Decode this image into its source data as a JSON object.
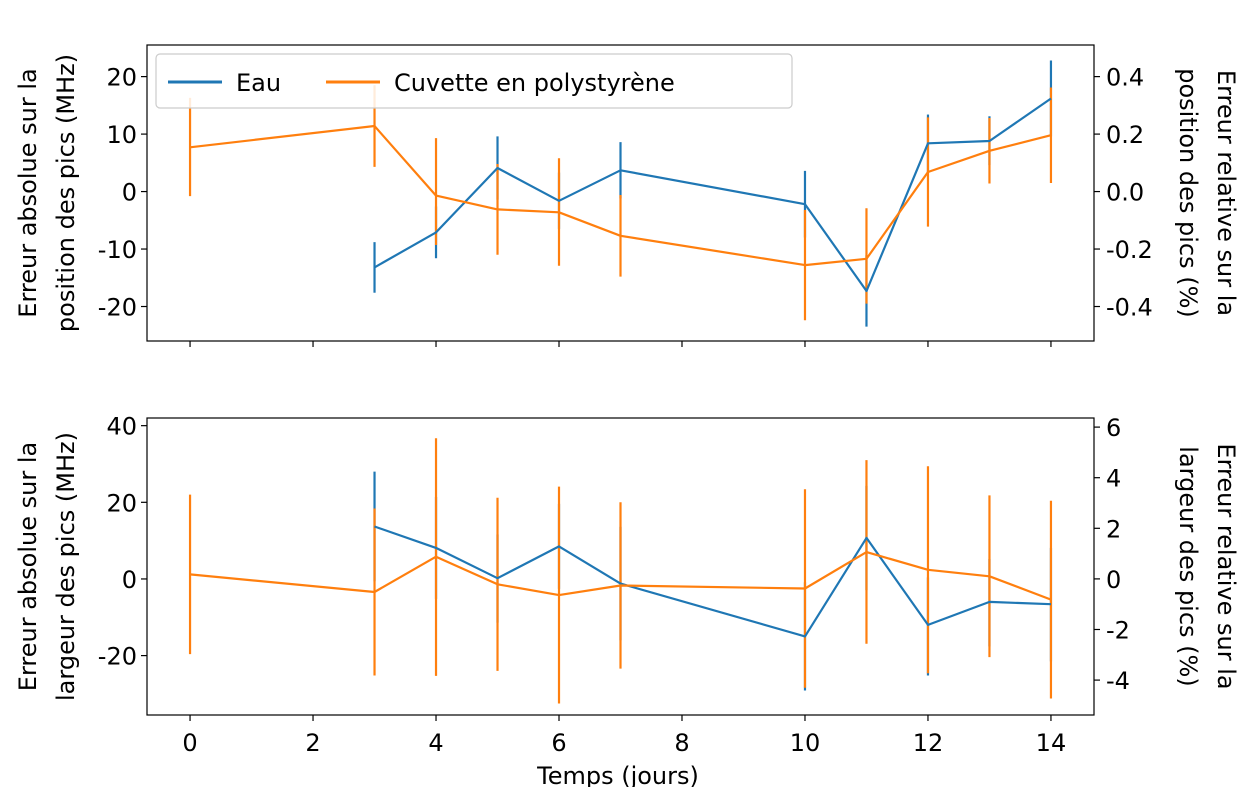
{
  "chart_data": [
    {
      "type": "line",
      "name": "top",
      "xlabel": "",
      "ylabel_left": [
        "Erreur absolue sur la",
        "position des pics (MHz)"
      ],
      "ylabel_right": [
        "Erreur relative sur la",
        "position des pics (%)"
      ],
      "xlim": [
        -0.7,
        14.7
      ],
      "ylim": [
        -26,
        25.5
      ],
      "ylim_right": [
        -0.52,
        0.51
      ],
      "xticks": [
        0,
        2,
        4,
        6,
        8,
        10,
        12,
        14
      ],
      "yticks": [
        20,
        10,
        0,
        -10,
        -20
      ],
      "ytick_labels": [
        "20",
        "10",
        "0",
        "-10",
        "-20"
      ],
      "yticks_right": [
        0.4,
        0.2,
        0.0,
        -0.2,
        -0.4
      ],
      "ytick_labels_right": [
        "0.4",
        "0.2",
        "0.0",
        "-0.2",
        "-0.4"
      ],
      "show_xtick_labels": false,
      "legend": {
        "placement": "top-left",
        "entries": [
          "Eau",
          "Cuvette en polystyrène"
        ]
      },
      "series": [
        {
          "name": "Eau",
          "color": "#1f77b4",
          "x": [
            3,
            4,
            5,
            6,
            7,
            10,
            11,
            12,
            13,
            14
          ],
          "y": [
            -13.2,
            -7.1,
            4.1,
            -1.6,
            3.7,
            -2.2,
            -17.3,
            8.4,
            8.8,
            16.2
          ],
          "yerr_low": [
            -17.6,
            -11.6,
            -1.4,
            -6.5,
            -1.2,
            -8.0,
            -23.5,
            3.2,
            4.6,
            9.6
          ],
          "yerr_high": [
            -8.8,
            -2.6,
            9.6,
            3.3,
            8.6,
            3.6,
            -11.1,
            13.4,
            13.1,
            22.8
          ]
        },
        {
          "name": "Cuvette en polystyrène",
          "color": "#ff7f0e",
          "x": [
            0,
            3,
            4,
            5,
            6,
            7,
            10,
            11,
            12,
            13,
            14
          ],
          "y": [
            7.7,
            11.4,
            -0.7,
            -3.1,
            -3.6,
            -7.7,
            -12.8,
            -11.7,
            3.4,
            7.1,
            9.8
          ],
          "yerr_low": [
            -0.8,
            4.3,
            -9.3,
            -11.0,
            -12.9,
            -14.8,
            -22.4,
            -19.5,
            -6.1,
            1.4,
            1.5
          ],
          "yerr_high": [
            16.3,
            18.5,
            9.3,
            4.8,
            5.8,
            -0.6,
            -3.2,
            -2.9,
            12.9,
            12.8,
            18.1
          ]
        }
      ]
    },
    {
      "type": "line",
      "name": "bottom",
      "xlabel": "Temps (jours)",
      "ylabel_left": [
        "Erreur absolue sur la",
        "largeur des pics (MHz)"
      ],
      "ylabel_right": [
        "Erreur relative sur la",
        "largeur des pics (%)"
      ],
      "xlim": [
        -0.7,
        14.7
      ],
      "ylim": [
        -35.5,
        42
      ],
      "ylim_right": [
        -5.38,
        6.36
      ],
      "xticks": [
        0,
        2,
        4,
        6,
        8,
        10,
        12,
        14
      ],
      "xtick_labels": [
        "0",
        "2",
        "4",
        "6",
        "8",
        "10",
        "12",
        "14"
      ],
      "yticks": [
        40,
        20,
        0,
        -20
      ],
      "ytick_labels": [
        "40",
        "20",
        "0",
        "-20"
      ],
      "yticks_right": [
        6,
        4,
        2,
        0,
        -2,
        -4
      ],
      "ytick_labels_right": [
        "6",
        "4",
        "2",
        "0",
        "-2",
        "-4"
      ],
      "show_xtick_labels": true,
      "series": [
        {
          "name": "Eau",
          "color": "#1f77b4",
          "x": [
            3,
            4,
            5,
            6,
            7,
            10,
            11,
            12,
            13,
            14
          ],
          "y": [
            13.7,
            8.1,
            0.2,
            8.5,
            -1.2,
            -15.0,
            10.7,
            -12.0,
            -6.0,
            -6.6
          ],
          "yerr_low": [
            -0.6,
            -5.2,
            -11.4,
            -2.6,
            -16.0,
            -29.1,
            -2.9,
            -25.2,
            -17.6,
            -21.5
          ],
          "yerr_high": [
            28.0,
            21.4,
            11.6,
            19.6,
            13.6,
            -0.9,
            24.3,
            0.4,
            5.2,
            8.1
          ]
        },
        {
          "name": "Cuvette en polystyrène",
          "color": "#ff7f0e",
          "x": [
            0,
            3,
            4,
            5,
            6,
            7,
            10,
            11,
            12,
            13,
            14
          ],
          "y": [
            1.2,
            -3.4,
            5.8,
            -1.4,
            -4.2,
            -1.7,
            -2.5,
            7.0,
            2.4,
            0.7,
            -5.4
          ],
          "yerr_low": [
            -19.6,
            -25.2,
            -25.3,
            -24.0,
            -32.5,
            -23.4,
            -28.4,
            -16.9,
            -24.6,
            -20.4,
            -31.2
          ],
          "yerr_high": [
            22.0,
            18.4,
            36.7,
            21.2,
            24.1,
            20.0,
            23.4,
            31.0,
            29.4,
            21.8,
            20.4
          ]
        }
      ]
    }
  ]
}
